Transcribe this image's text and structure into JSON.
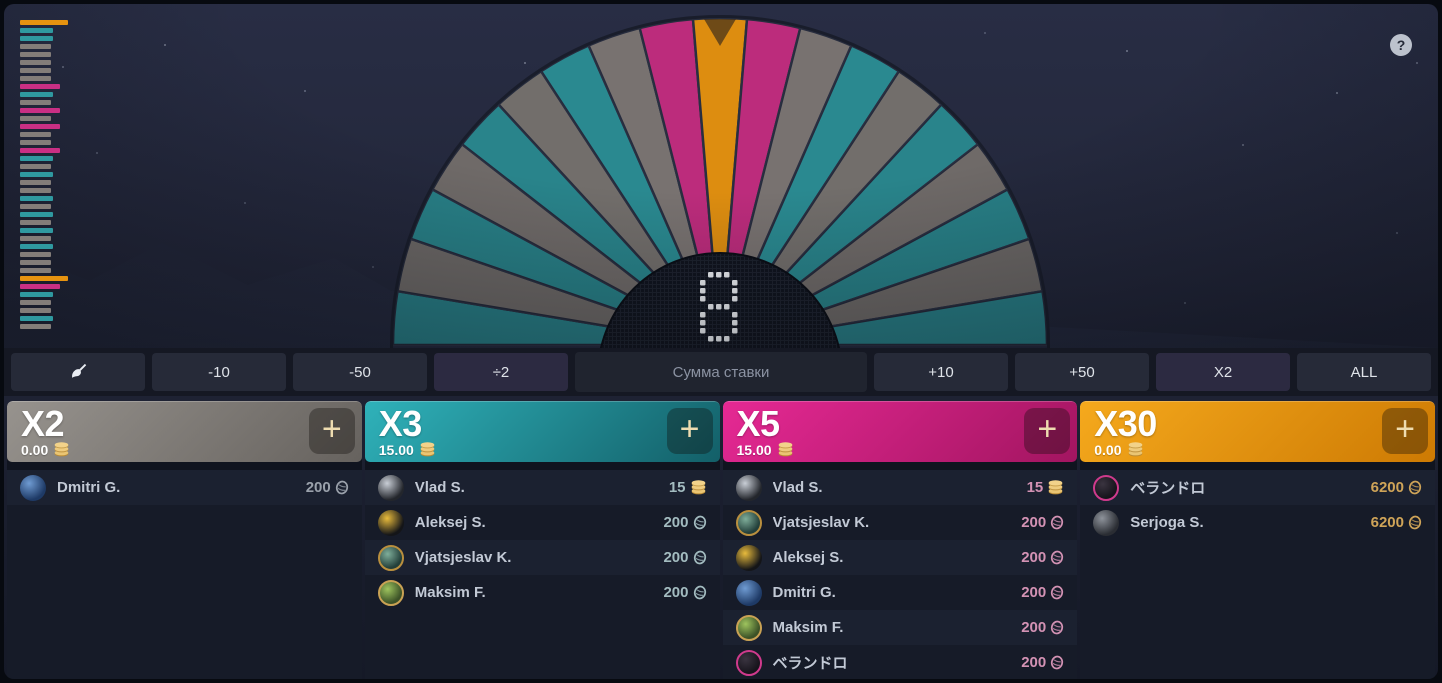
{
  "help": {
    "label": "?"
  },
  "wheel": {
    "countdown": "8",
    "segments": [
      3,
      2,
      3,
      2,
      3,
      2,
      3,
      2,
      5,
      30,
      5,
      2,
      3,
      2,
      3,
      2,
      3,
      2,
      3
    ]
  },
  "history": {
    "items": [
      30,
      3,
      3,
      2,
      2,
      2,
      2,
      2,
      5,
      3,
      2,
      5,
      2,
      5,
      2,
      2,
      5,
      3,
      2,
      3,
      2,
      2,
      3,
      2,
      3,
      2,
      3,
      2,
      3,
      2,
      2,
      2,
      30,
      5,
      3,
      2,
      2,
      3,
      2
    ]
  },
  "controls": {
    "clear_icon": "brush-icon",
    "left_buttons": [
      "-10",
      "-50",
      "÷2"
    ],
    "bet_input_placeholder": "Сумма ставки",
    "right_buttons": [
      "+10",
      "+50",
      "X2",
      "ALL"
    ]
  },
  "colors": {
    "multiplier_2": "#837d79",
    "multiplier_3": "#2f99a0",
    "multiplier_5": "#c92f84",
    "multiplier_30": "#e69310",
    "segment_divider": "#2a3042",
    "hub_fill": "#10141e",
    "countdown_dots": "#edf0f4",
    "plus_icon": "#eedcb0",
    "coin_gold": "#eac573"
  },
  "columns": [
    {
      "label": "X2",
      "total": "0.00",
      "header_from": "#97938e",
      "header_to": "#66625e",
      "amount_color": "#9aa1ab",
      "plus_label": "+",
      "players": [
        {
          "name": "Dmitri G.",
          "amount": "200",
          "currency": "coin",
          "avatar_bg": "#1e3a66",
          "avatar_fg": "#6f9bd2"
        }
      ]
    },
    {
      "label": "X3",
      "total": "15.00",
      "header_from": "#2fb2ba",
      "header_to": "#135f68",
      "amount_color": "#a3bcc0",
      "plus_label": "+",
      "players": [
        {
          "name": "Vlad S.",
          "amount": "15",
          "currency": "stack",
          "avatar_bg": "#23262c",
          "avatar_fg": "#c9ced6"
        },
        {
          "name": "Aleksej S.",
          "amount": "200",
          "currency": "coin",
          "avatar_bg": "#141518",
          "avatar_fg": "#e8bb3c"
        },
        {
          "name": "Vjatsjeslav K.",
          "amount": "200",
          "currency": "coin",
          "avatar_bg": "#233f3a",
          "avatar_fg": "#7fae9a",
          "avatar_ring": "#b98f3e"
        },
        {
          "name": "Maksim F.",
          "amount": "200",
          "currency": "coin",
          "avatar_bg": "#3c5227",
          "avatar_fg": "#9ec45e",
          "avatar_ring": "#c9a254"
        }
      ]
    },
    {
      "label": "X5",
      "total": "15.00",
      "header_from": "#e62994",
      "header_to": "#a21560",
      "amount_color": "#d392b4",
      "plus_label": "+",
      "players": [
        {
          "name": "Vlad S.",
          "amount": "15",
          "currency": "stack",
          "avatar_bg": "#23262c",
          "avatar_fg": "#c9ced6"
        },
        {
          "name": "Vjatsjeslav K.",
          "amount": "200",
          "currency": "coin",
          "avatar_bg": "#233f3a",
          "avatar_fg": "#7fae9a",
          "avatar_ring": "#b98f3e"
        },
        {
          "name": "Aleksej S.",
          "amount": "200",
          "currency": "coin",
          "avatar_bg": "#141518",
          "avatar_fg": "#e8bb3c"
        },
        {
          "name": "Dmitri G.",
          "amount": "200",
          "currency": "coin",
          "avatar_bg": "#1e3a66",
          "avatar_fg": "#6f9bd2"
        },
        {
          "name": "Maksim F.",
          "amount": "200",
          "currency": "coin",
          "avatar_bg": "#3c5227",
          "avatar_fg": "#9ec45e",
          "avatar_ring": "#c9a254"
        },
        {
          "name": "ベランドロ",
          "amount": "200",
          "currency": "coin",
          "avatar_bg": "#17141c",
          "avatar_fg": "#3a3440",
          "avatar_ring": "#cf3a8c"
        }
      ]
    },
    {
      "label": "X30",
      "total": "0.00",
      "header_from": "#f5a91d",
      "header_to": "#cd7a03",
      "amount_color": "#cfa458",
      "plus_label": "+",
      "players": [
        {
          "name": "ベランドロ",
          "amount": "6200",
          "currency": "coin",
          "avatar_bg": "#17141c",
          "avatar_fg": "#3a3440",
          "avatar_ring": "#cf3a8c"
        },
        {
          "name": "Serjoga S.",
          "amount": "6200",
          "currency": "coin",
          "avatar_bg": "#2a2d33",
          "avatar_fg": "#8e939b"
        }
      ]
    }
  ]
}
